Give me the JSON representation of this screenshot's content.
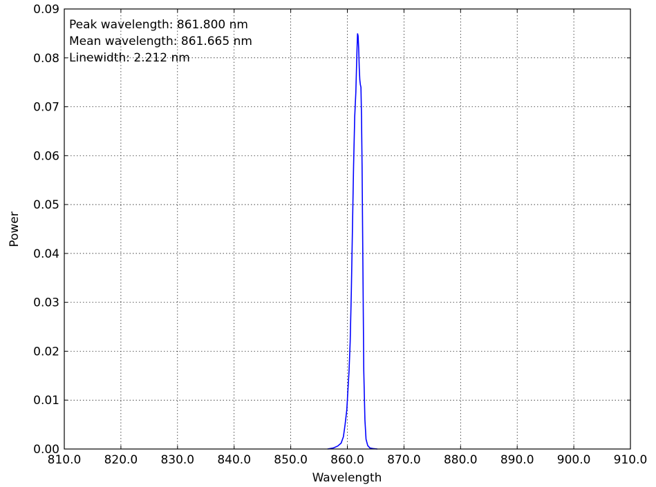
{
  "chart_data": {
    "type": "line",
    "title": "",
    "xlabel": "Wavelength",
    "ylabel": "Power",
    "xlim": [
      810.0,
      910.0
    ],
    "ylim": [
      0.0,
      0.09
    ],
    "grid": true,
    "x_ticks": [
      810,
      820,
      830,
      840,
      850,
      860,
      870,
      880,
      890,
      900,
      910
    ],
    "x_tick_labels": [
      "810.0",
      "820.0",
      "830.0",
      "840.0",
      "850.0",
      "860.0",
      "870.0",
      "880.0",
      "890.0",
      "900.0",
      "910.0"
    ],
    "y_ticks": [
      0.0,
      0.01,
      0.02,
      0.03,
      0.04,
      0.05,
      0.06,
      0.07,
      0.08,
      0.09
    ],
    "y_tick_labels": [
      "0.00",
      "0.01",
      "0.02",
      "0.03",
      "0.04",
      "0.05",
      "0.06",
      "0.07",
      "0.08",
      "0.09"
    ],
    "series": [
      {
        "color": "#0000ff",
        "x": [
          856.5,
          857.5,
          858.3,
          858.9,
          859.3,
          859.6,
          859.9,
          860.1,
          860.3,
          860.5,
          860.7,
          860.9,
          861.1,
          861.3,
          861.5,
          861.7,
          861.8,
          861.9,
          862.0,
          862.1,
          862.2,
          862.3,
          862.4,
          862.5,
          862.6,
          862.7,
          862.8,
          862.9,
          863.1,
          863.3,
          863.6,
          864.0,
          864.5,
          865.3
        ],
        "y": [
          0.0,
          0.0002,
          0.0006,
          0.0012,
          0.0025,
          0.005,
          0.008,
          0.012,
          0.016,
          0.022,
          0.032,
          0.045,
          0.058,
          0.068,
          0.073,
          0.0815,
          0.085,
          0.0845,
          0.082,
          0.078,
          0.0755,
          0.0745,
          0.074,
          0.068,
          0.058,
          0.044,
          0.03,
          0.016,
          0.006,
          0.002,
          0.0007,
          0.0002,
          0.0001,
          0.0
        ]
      }
    ],
    "annotations": [
      "Peak wavelength: 861.800 nm",
      "Mean wavelength: 861.665 nm",
      "Linewidth: 2.212 nm"
    ]
  }
}
